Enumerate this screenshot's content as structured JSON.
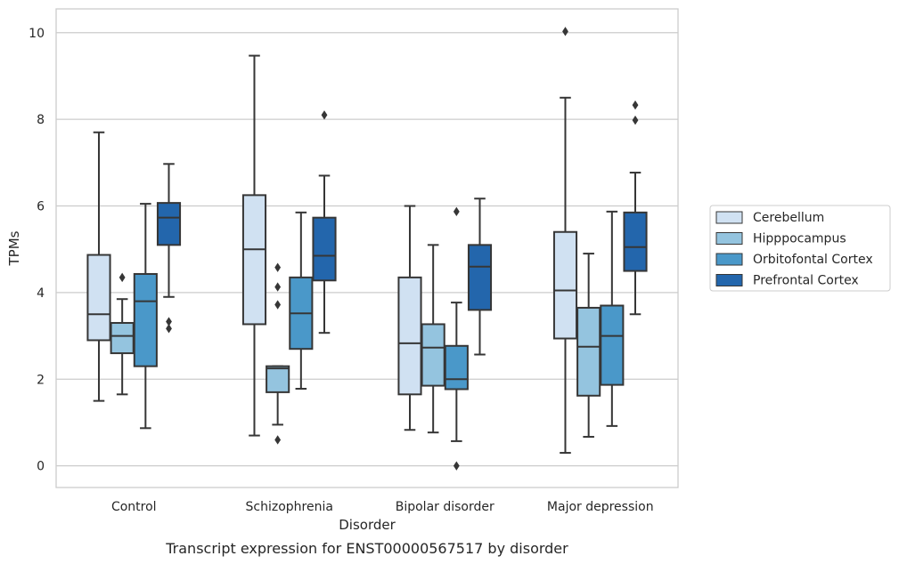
{
  "chart_data": {
    "type": "boxplot",
    "title": "",
    "caption": "Transcript expression for ENST00000567517 by disorder",
    "xlabel": "Disorder",
    "ylabel": "TPMs",
    "ylim": [
      -0.5,
      10.55
    ],
    "yticks": [
      0,
      2,
      4,
      6,
      8,
      10
    ],
    "grid": "horizontal",
    "legend_position": "right",
    "categories": [
      "Control",
      "Schizophrenia",
      "Bipolar disorder",
      "Major depression"
    ],
    "series": [
      {
        "name": "Cerebellum",
        "color": "#d0e1f2",
        "boxes": [
          {
            "whisker_low": 1.5,
            "q1": 2.9,
            "median": 3.5,
            "q3": 4.87,
            "whisker_high": 7.7,
            "outliers": []
          },
          {
            "whisker_low": 0.7,
            "q1": 3.27,
            "median": 5.0,
            "q3": 6.25,
            "whisker_high": 9.47,
            "outliers": []
          },
          {
            "whisker_low": 0.83,
            "q1": 1.65,
            "median": 2.83,
            "q3": 4.35,
            "whisker_high": 6.0,
            "outliers": []
          },
          {
            "whisker_low": 0.3,
            "q1": 2.94,
            "median": 4.05,
            "q3": 5.4,
            "whisker_high": 8.5,
            "outliers": [
              10.03
            ]
          }
        ]
      },
      {
        "name": "Hipppocampus",
        "color": "#94c4df",
        "boxes": [
          {
            "whisker_low": 1.65,
            "q1": 2.6,
            "median": 3.0,
            "q3": 3.3,
            "whisker_high": 3.85,
            "outliers": [
              4.35
            ]
          },
          {
            "whisker_low": 0.95,
            "q1": 1.7,
            "median": 2.25,
            "q3": 2.3,
            "whisker_high": 2.3,
            "outliers": [
              0.6,
              3.72,
              4.13,
              4.58
            ]
          },
          {
            "whisker_low": 0.77,
            "q1": 1.85,
            "median": 2.73,
            "q3": 3.27,
            "whisker_high": 5.1,
            "outliers": []
          },
          {
            "whisker_low": 0.67,
            "q1": 1.62,
            "median": 2.75,
            "q3": 3.65,
            "whisker_high": 4.9,
            "outliers": []
          }
        ]
      },
      {
        "name": "Orbitofontal Cortex",
        "color": "#4a98c9",
        "boxes": [
          {
            "whisker_low": 0.87,
            "q1": 2.3,
            "median": 3.8,
            "q3": 4.43,
            "whisker_high": 6.05,
            "outliers": []
          },
          {
            "whisker_low": 1.78,
            "q1": 2.7,
            "median": 3.52,
            "q3": 4.35,
            "whisker_high": 5.85,
            "outliers": []
          },
          {
            "whisker_low": 0.57,
            "q1": 1.77,
            "median": 2.0,
            "q3": 2.77,
            "whisker_high": 3.77,
            "outliers": [
              0.0,
              5.87
            ]
          },
          {
            "whisker_low": 0.92,
            "q1": 1.87,
            "median": 3.0,
            "q3": 3.7,
            "whisker_high": 5.87,
            "outliers": []
          }
        ]
      },
      {
        "name": "Prefrontal Cortex",
        "color": "#2366ac",
        "boxes": [
          {
            "whisker_low": 3.9,
            "q1": 5.1,
            "median": 5.73,
            "q3": 6.07,
            "whisker_high": 6.97,
            "outliers": [
              3.17,
              3.33
            ]
          },
          {
            "whisker_low": 3.07,
            "q1": 4.28,
            "median": 4.85,
            "q3": 5.73,
            "whisker_high": 6.7,
            "outliers": [
              8.1
            ]
          },
          {
            "whisker_low": 2.57,
            "q1": 3.6,
            "median": 4.6,
            "q3": 5.1,
            "whisker_high": 6.17,
            "outliers": []
          },
          {
            "whisker_low": 3.5,
            "q1": 4.5,
            "median": 5.05,
            "q3": 5.85,
            "whisker_high": 6.77,
            "outliers": [
              7.98,
              8.33
            ]
          }
        ]
      }
    ]
  }
}
